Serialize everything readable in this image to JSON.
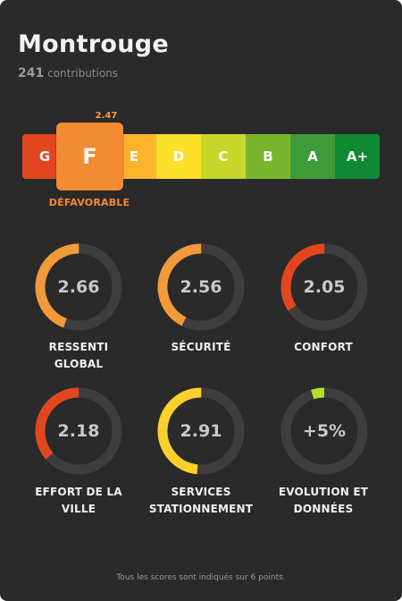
{
  "city": "Montrouge",
  "contributions": {
    "count": "241",
    "label": "contributions"
  },
  "scale": {
    "grades": [
      {
        "letter": "G",
        "color": "#e2461e"
      },
      {
        "letter": "F",
        "color": "#f28b32"
      },
      {
        "letter": "E",
        "color": "#fbb42c"
      },
      {
        "letter": "D",
        "color": "#fde02a"
      },
      {
        "letter": "C",
        "color": "#c5d82a"
      },
      {
        "letter": "B",
        "color": "#7bb52e"
      },
      {
        "letter": "A",
        "color": "#3f9b3a"
      },
      {
        "letter": "A+",
        "color": "#0e8a32"
      }
    ],
    "selected": {
      "letter": "F",
      "score": "2.47",
      "label": "DÉFAVORABLE",
      "color": "#f28b32"
    }
  },
  "gauges": [
    {
      "value": "2.66",
      "label_line1": "RESSENTI",
      "label_line2": "GLOBAL",
      "fraction": 0.443,
      "color": "#f2993a"
    },
    {
      "value": "2.56",
      "label_line1": "SÉCURITÉ",
      "label_line2": "",
      "fraction": 0.427,
      "color": "#f2993a"
    },
    {
      "value": "2.05",
      "label_line1": "CONFORT",
      "label_line2": "",
      "fraction": 0.342,
      "color": "#e2461e"
    },
    {
      "value": "2.18",
      "label_line1": "EFFORT DE LA",
      "label_line2": "VILLE",
      "fraction": 0.363,
      "color": "#e2461e"
    },
    {
      "value": "2.91",
      "label_line1": "SERVICES",
      "label_line2": "STATIONNEMENT",
      "fraction": 0.485,
      "color": "#fbd02c"
    },
    {
      "value": "+5%",
      "label_line1": "EVOLUTION ET",
      "label_line2": "DONNÉES",
      "fraction": 0.05,
      "color": "#b5e02a"
    }
  ],
  "footnote": "Tous les scores sont indiqués sur 6 points.",
  "colors": {
    "background": "#2a2a2a",
    "track": "#3e3e3e"
  }
}
